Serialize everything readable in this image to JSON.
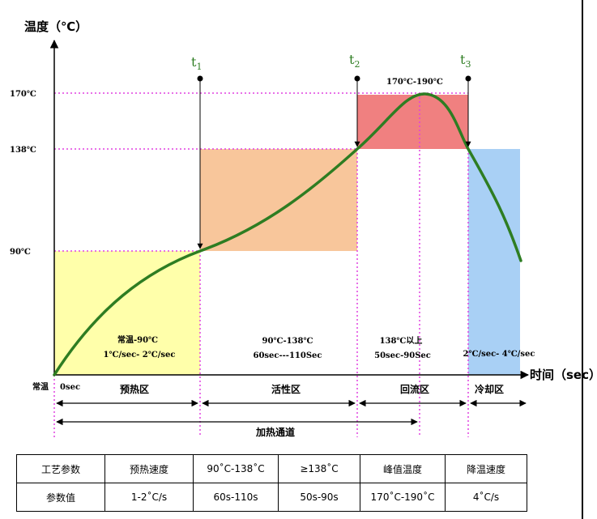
{
  "axes": {
    "y_title": "温度（℃）",
    "x_title": "时间（sec）",
    "y_ticks": [
      "170℃",
      "138℃",
      "90℃"
    ],
    "origin_temp": "常温",
    "origin_time": "0sec"
  },
  "markers": {
    "t1": {
      "letter": "t",
      "sub": "1"
    },
    "t2": {
      "letter": "t",
      "sub": "2"
    },
    "t3": {
      "letter": "t",
      "sub": "3"
    }
  },
  "zones": {
    "preheat": {
      "name": "预热区",
      "line1": "常温-90℃",
      "line2": "1℃/sec- 2℃/sec",
      "color": "#ffffaa"
    },
    "active": {
      "name": "活性区",
      "line1": "90℃-138℃",
      "line2": "60sec---110Sec",
      "color": "#f8c69b"
    },
    "reflow": {
      "name": "回流区",
      "line1": "138℃以上",
      "line2": "50sec-90Sec",
      "top_label": "170℃-190℃",
      "color": "#f08080"
    },
    "cooling": {
      "name": "冷却区",
      "line1": "2℃/sec- 4℃/sec",
      "color": "#a9d0f5"
    }
  },
  "heating_channel": "加热通道",
  "colors": {
    "curve": "#2e7d22",
    "guide": "#e040e0",
    "axis": "#000000"
  },
  "table": {
    "headers": [
      "工艺参数",
      "预热速度",
      "90˚C-138˚C",
      "≥138˚C",
      "峰值温度",
      "降温速度"
    ],
    "values": [
      "参数值",
      "1-2˚C/s",
      "60s-110s",
      "50s-90s",
      "170˚C-190˚C",
      "4˚C/s"
    ]
  }
}
